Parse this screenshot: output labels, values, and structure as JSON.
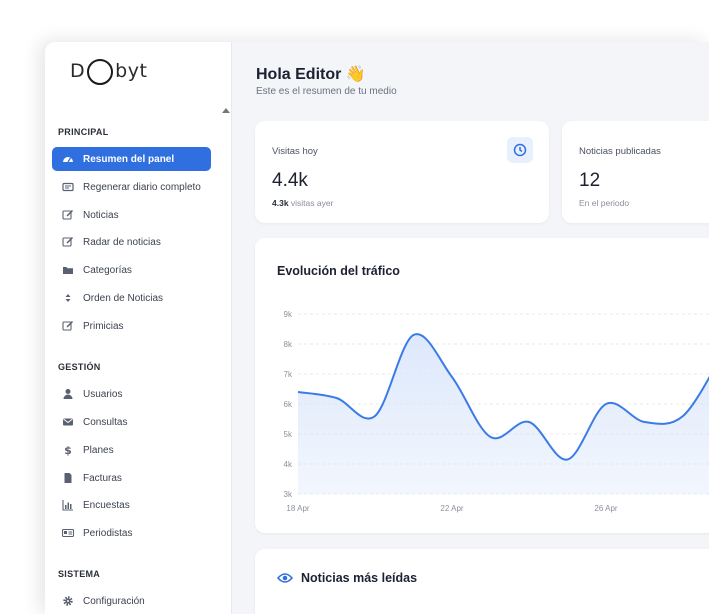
{
  "brand": {
    "logo_prefix": "D",
    "logo_suffix": "byt"
  },
  "sidebar": {
    "sections": [
      {
        "title": "PRINCIPAL"
      },
      {
        "title": "GESTIÓN"
      },
      {
        "title": "SISTEMA"
      }
    ],
    "items": [
      {
        "label": "Resumen del panel",
        "icon": "dashboard-icon"
      },
      {
        "label": "Regenerar diario completo",
        "icon": "newspaper-icon"
      },
      {
        "label": "Noticias",
        "icon": "edit-icon"
      },
      {
        "label": "Radar de noticias",
        "icon": "edit-icon"
      },
      {
        "label": "Categorías",
        "icon": "folder-icon"
      },
      {
        "label": "Orden de Noticias",
        "icon": "sort-icon"
      },
      {
        "label": "Primicias",
        "icon": "edit-icon"
      },
      {
        "label": "Usuarios",
        "icon": "user-icon"
      },
      {
        "label": "Consultas",
        "icon": "envelope-icon"
      },
      {
        "label": "Planes",
        "icon": "dollar-icon"
      },
      {
        "label": "Facturas",
        "icon": "file-icon"
      },
      {
        "label": "Encuestas",
        "icon": "bar-chart-icon"
      },
      {
        "label": "Periodistas",
        "icon": "id-card-icon"
      },
      {
        "label": "Configuración",
        "icon": "gear-icon"
      }
    ]
  },
  "header": {
    "greeting": "Hola Editor 👋",
    "subtitle": "Este es el resumen de tu medio"
  },
  "stats": [
    {
      "label": "Visitas hoy",
      "value": "4.4k",
      "foot_value": "4.3k",
      "foot_text": " visitas ayer",
      "icon": "clock-icon"
    },
    {
      "label": "Noticias publicadas",
      "value": "12",
      "foot_text": "En el periodo"
    }
  ],
  "traffic": {
    "title": "Evolución del tráfico"
  },
  "most_read": {
    "title": "Noticias más leídas",
    "icon": "eye-icon"
  },
  "colors": {
    "accent": "#2f6fe0",
    "line": "#3b7be6",
    "fill": "#dbe7fb"
  },
  "chart_data": {
    "type": "area",
    "title": "Evolución del tráfico",
    "xlabel": "",
    "ylabel": "",
    "ylim": [
      3000,
      9000
    ],
    "y_ticks": [
      "3k",
      "4k",
      "5k",
      "6k",
      "7k",
      "8k",
      "9k"
    ],
    "x_ticks": [
      {
        "label": "18 Apr",
        "x": 0
      },
      {
        "label": "22 Apr",
        "x": 4
      },
      {
        "label": "26 Apr",
        "x": 8
      }
    ],
    "series": [
      {
        "x": [
          0,
          1,
          2,
          3,
          4,
          5,
          6,
          7,
          8,
          9,
          10,
          11
        ],
        "values": [
          6400,
          6200,
          5600,
          8300,
          6900,
          4900,
          5400,
          4150,
          6000,
          5400,
          5600,
          7600
        ]
      }
    ],
    "grid": true,
    "legend": "none"
  }
}
